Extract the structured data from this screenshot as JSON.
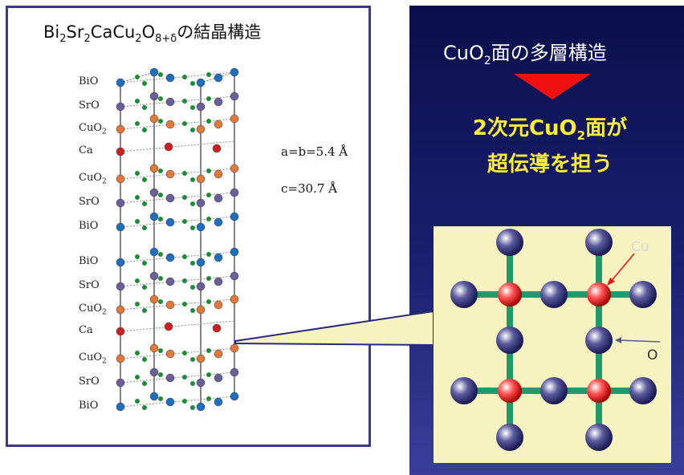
{
  "left": {
    "title_main": "Bi",
    "title_parts": [
      "Bi",
      "2",
      "Sr",
      "2",
      "CaCu",
      "2",
      "O",
      "8+δ",
      "の結晶構造"
    ],
    "layers": [
      {
        "name": "BiO"
      },
      {
        "name": "SrO"
      },
      {
        "name": "CuO",
        "sub": "2"
      },
      {
        "name": "Ca"
      },
      {
        "name": "CuO",
        "sub": "2"
      },
      {
        "name": "SrO"
      },
      {
        "name": "BiO"
      },
      {
        "name": "BiO"
      },
      {
        "name": "SrO"
      },
      {
        "name": "CuO",
        "sub": "2"
      },
      {
        "name": "Ca"
      },
      {
        "name": "CuO",
        "sub": "2"
      },
      {
        "name": "SrO"
      },
      {
        "name": "BiO"
      }
    ],
    "lattice_ab": "a=b=5.4 Å",
    "lattice_c": "c=30.7 Å"
  },
  "right": {
    "title_parts": [
      "CuO",
      "2",
      "面の多層構造"
    ],
    "conclusion_line1_parts": [
      "2次元CuO",
      "2",
      "面が"
    ],
    "conclusion_line2": "超伝導を担う",
    "cu_label": "Cu",
    "o_label": "O"
  },
  "colors": {
    "Bi": "#1f6fbf",
    "Sr": "#6a5f9a",
    "Cu": "#e07a3a",
    "Ca": "#cc1f1f",
    "O": "#1f8a3a",
    "arrow": "#ee1111",
    "plane_bg": "#f6f3c0",
    "bond": "#1f9a6a",
    "conclusion": "#ffee33"
  }
}
